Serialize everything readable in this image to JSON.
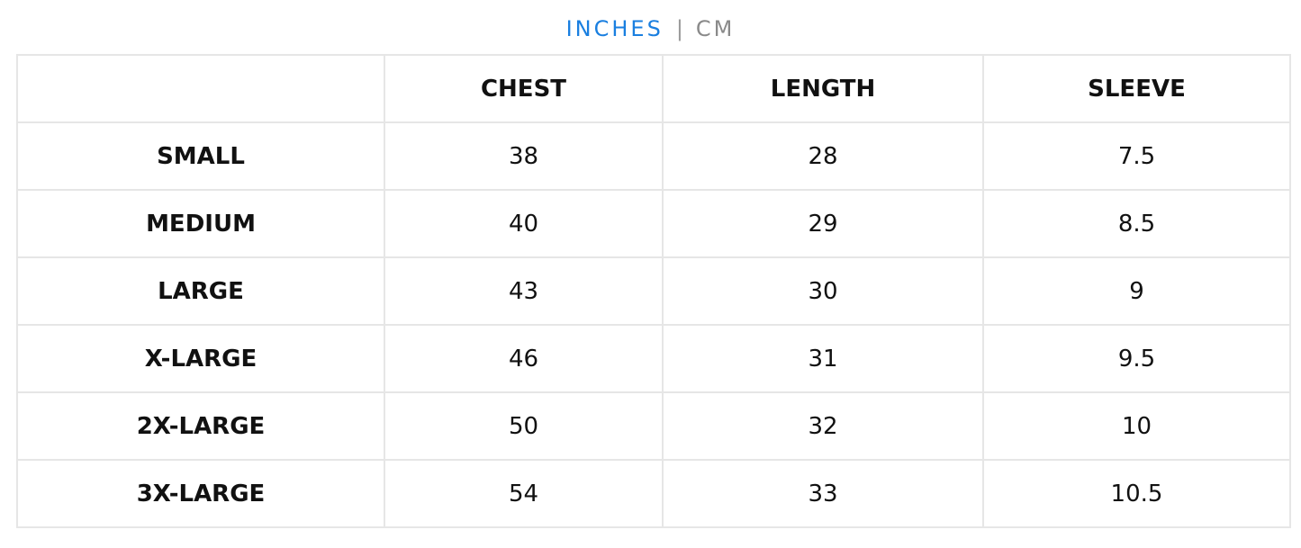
{
  "units": {
    "options": [
      "INCHES",
      "CM"
    ],
    "selected": "INCHES",
    "separator": "|",
    "active_color": "#1a7fe0"
  },
  "table": {
    "headers": [
      "",
      "CHEST",
      "LENGTH",
      "SLEEVE"
    ],
    "rows": [
      [
        "SMALL",
        "38",
        "28",
        "7.5"
      ],
      [
        "MEDIUM",
        "40",
        "29",
        "8.5"
      ],
      [
        "LARGE",
        "43",
        "30",
        "9"
      ],
      [
        "X-LARGE",
        "46",
        "31",
        "9.5"
      ],
      [
        "2X-LARGE",
        "50",
        "32",
        "10"
      ],
      [
        "3X-LARGE",
        "54",
        "33",
        "10.5"
      ]
    ]
  }
}
